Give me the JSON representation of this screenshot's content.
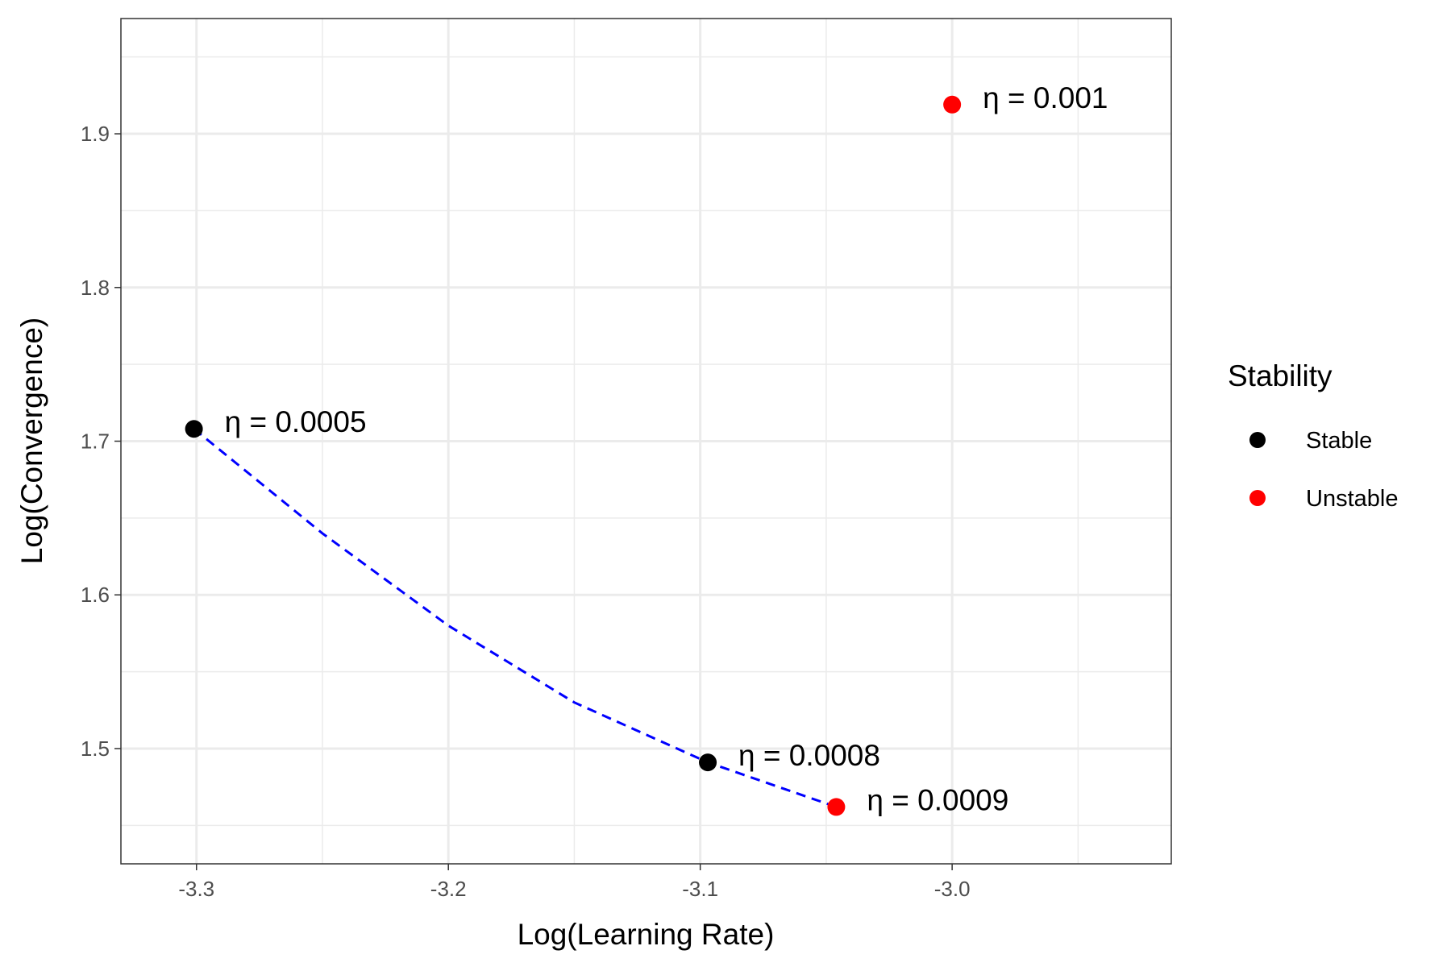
{
  "chart_data": {
    "type": "scatter",
    "xlabel": "Log(Learning Rate)",
    "ylabel": "Log(Convergence)",
    "xlim": [
      -3.33,
      -2.913
    ],
    "ylim": [
      1.425,
      1.975
    ],
    "x_major_ticks": [
      -3.3,
      -3.2,
      -3.1,
      -3.0
    ],
    "x_tick_labels": [
      "-3.3",
      "-3.2",
      "-3.1",
      "-3.0"
    ],
    "x_minor_ticks": [
      -3.25,
      -3.15,
      -3.05,
      -2.95
    ],
    "y_major_ticks": [
      1.5,
      1.6,
      1.7,
      1.8,
      1.9
    ],
    "y_tick_labels": [
      "1.5",
      "1.6",
      "1.7",
      "1.8",
      "1.9"
    ],
    "y_minor_ticks": [
      1.45,
      1.55,
      1.65,
      1.75,
      1.85,
      1.95
    ],
    "grid": true,
    "legend": {
      "title": "Stability",
      "position": "right",
      "entries": [
        {
          "label": "Stable",
          "color": "#000000"
        },
        {
          "label": "Unstable",
          "color": "#ff0000"
        }
      ]
    },
    "points": [
      {
        "x": -3.301,
        "y": 1.708,
        "label": "η = 0.0005",
        "stability": "Stable"
      },
      {
        "x": -3.097,
        "y": 1.491,
        "label": "η = 0.0008",
        "stability": "Stable"
      },
      {
        "x": -3.046,
        "y": 1.462,
        "label": "η = 0.0009",
        "stability": "Unstable"
      },
      {
        "x": -3.0,
        "y": 1.919,
        "label": "η = 0.001",
        "stability": "Unstable"
      }
    ],
    "trend_line": {
      "style": "dashed",
      "color": "#0000ff",
      "x": [
        -3.301,
        -3.25,
        -3.2,
        -3.15,
        -3.097,
        -3.046
      ],
      "y": [
        1.708,
        1.64,
        1.58,
        1.53,
        1.491,
        1.462
      ]
    }
  }
}
